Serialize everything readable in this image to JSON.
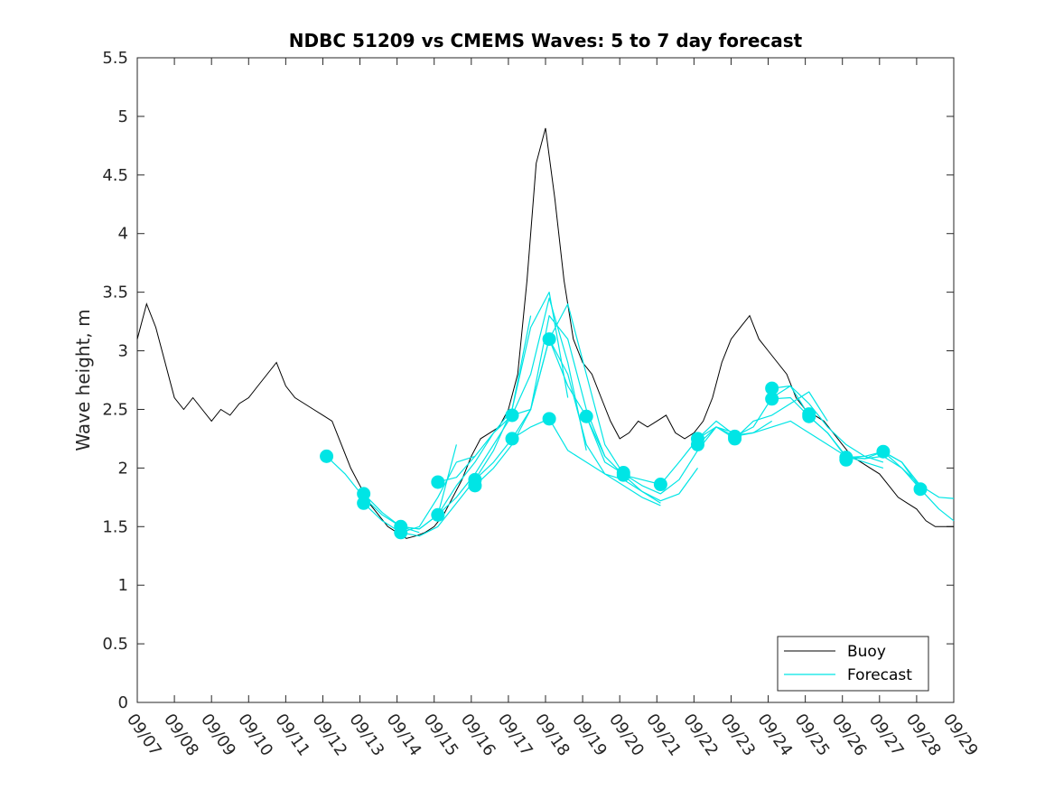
{
  "chart_data": {
    "type": "line",
    "title": "NDBC 51209 vs CMEMS Waves: 5 to 7 day forecast",
    "xlabel": "",
    "ylabel": "Wave height, m",
    "xlim": [
      0,
      22
    ],
    "ylim": [
      0,
      5.5
    ],
    "yticks": [
      0,
      0.5,
      1,
      1.5,
      2,
      2.5,
      3,
      3.5,
      4,
      4.5,
      5,
      5.5
    ],
    "ytick_labels": [
      "0",
      "0.5",
      "1",
      "1.5",
      "2",
      "2.5",
      "3",
      "3.5",
      "4",
      "4.5",
      "5",
      "5.5"
    ],
    "xtick_labels": [
      "09/07",
      "09/08",
      "09/09",
      "09/10",
      "09/11",
      "09/12",
      "09/13",
      "09/14",
      "09/15",
      "09/16",
      "09/17",
      "09/18",
      "09/19",
      "09/20",
      "09/21",
      "09/22",
      "09/23",
      "09/24",
      "09/25",
      "09/26",
      "09/27",
      "09/28",
      "09/29"
    ],
    "legend": {
      "position": "bottom-right",
      "entries": [
        {
          "label": "Buoy",
          "color": "#000000"
        },
        {
          "label": "Forecast",
          "color": "#00e5e5"
        }
      ]
    },
    "series": [
      {
        "name": "Buoy",
        "color": "#000000",
        "x": [
          0,
          0.25,
          0.5,
          0.75,
          1,
          1.25,
          1.5,
          1.75,
          2,
          2.25,
          2.5,
          2.75,
          3,
          3.25,
          3.5,
          3.75,
          4,
          4.25,
          4.5,
          4.75,
          5,
          5.25,
          5.5,
          5.75,
          6,
          6.25,
          6.5,
          6.75,
          7,
          7.25,
          7.5,
          7.75,
          8,
          8.25,
          8.5,
          8.75,
          9,
          9.25,
          9.5,
          9.75,
          10,
          10.25,
          10.5,
          10.75,
          11,
          11.25,
          11.5,
          11.75,
          12,
          12.25,
          12.5,
          12.75,
          13,
          13.25,
          13.5,
          13.75,
          14,
          14.25,
          14.5,
          14.75,
          15,
          15.25,
          15.5,
          15.75,
          16,
          16.25,
          16.5,
          16.75,
          17,
          17.25,
          17.5,
          17.75,
          18,
          18.25,
          18.5,
          18.75,
          19,
          19.25,
          19.5,
          19.75,
          20,
          20.25,
          20.5,
          20.75,
          21,
          21.25,
          21.5,
          21.75,
          22
        ],
        "y": [
          3.1,
          3.4,
          3.2,
          2.9,
          2.6,
          2.5,
          2.6,
          2.5,
          2.4,
          2.5,
          2.45,
          2.55,
          2.6,
          2.7,
          2.8,
          2.9,
          2.7,
          2.6,
          2.55,
          2.5,
          2.45,
          2.4,
          2.2,
          2.0,
          1.85,
          1.7,
          1.6,
          1.5,
          1.45,
          1.4,
          1.42,
          1.45,
          1.5,
          1.6,
          1.75,
          1.9,
          2.1,
          2.25,
          2.3,
          2.35,
          2.5,
          2.8,
          3.6,
          4.6,
          4.9,
          4.3,
          3.6,
          3.1,
          2.9,
          2.8,
          2.6,
          2.4,
          2.25,
          2.3,
          2.4,
          2.35,
          2.4,
          2.45,
          2.3,
          2.25,
          2.3,
          2.4,
          2.6,
          2.9,
          3.1,
          3.2,
          3.3,
          3.1,
          3.0,
          2.9,
          2.8,
          2.6,
          2.5,
          2.45,
          2.4,
          2.3,
          2.2,
          2.1,
          2.05,
          2.0,
          1.95,
          1.85,
          1.75,
          1.7,
          1.65,
          1.55,
          1.5,
          1.5,
          1.5
        ]
      },
      {
        "name": "Forecast",
        "color": "#00e5e5",
        "runs": [
          {
            "x": [
              5.1,
              5.6,
              6.1,
              6.6,
              7.1,
              7.6
            ],
            "y": [
              2.1,
              1.95,
              1.75,
              1.6,
              1.5,
              1.45
            ]
          },
          {
            "x": [
              6.1,
              6.6,
              7.1,
              7.6,
              8.1,
              8.6
            ],
            "y": [
              1.78,
              1.62,
              1.5,
              1.48,
              1.6,
              2.2
            ]
          },
          {
            "x": [
              6.1,
              6.6,
              7.1,
              7.6,
              8.1,
              8.6,
              9.1
            ],
            "y": [
              1.7,
              1.55,
              1.45,
              1.5,
              1.75,
              2.05,
              2.1
            ]
          },
          {
            "x": [
              7.1,
              7.6,
              8.1,
              8.6,
              9.1,
              9.6,
              10.1
            ],
            "y": [
              1.5,
              1.48,
              1.6,
              1.85,
              2.05,
              2.3,
              2.45
            ]
          },
          {
            "x": [
              7.1,
              7.6,
              8.1,
              8.6,
              9.1,
              9.6,
              10.1,
              10.6
            ],
            "y": [
              1.45,
              1.42,
              1.5,
              1.7,
              1.9,
              2.15,
              2.5,
              3.3
            ]
          },
          {
            "x": [
              8.1,
              8.6,
              9.1,
              9.6,
              10.1,
              10.6,
              11.1,
              11.6
            ],
            "y": [
              1.88,
              1.92,
              2.1,
              2.3,
              2.5,
              3.2,
              3.5,
              2.6
            ]
          },
          {
            "x": [
              8.1,
              8.6,
              9.1,
              9.6,
              10.1,
              10.6,
              11.1,
              11.6,
              12.1
            ],
            "y": [
              1.6,
              1.75,
              1.95,
              2.2,
              2.45,
              2.8,
              3.45,
              2.9,
              2.15
            ]
          },
          {
            "x": [
              9.1,
              9.6,
              10.1,
              10.6,
              11.1,
              11.6,
              12.1,
              12.6
            ],
            "y": [
              1.9,
              2.05,
              2.25,
              2.5,
              3.3,
              3.1,
              2.5,
              2.1
            ]
          },
          {
            "x": [
              9.1,
              9.6,
              10.1,
              10.6,
              11.1,
              11.6,
              12.1,
              12.6,
              13.1
            ],
            "y": [
              1.85,
              2.0,
              2.2,
              2.5,
              3.1,
              3.4,
              2.8,
              2.2,
              1.95
            ]
          },
          {
            "x": [
              10.1,
              10.6,
              11.1,
              11.6,
              12.1,
              12.6,
              13.1,
              13.6,
              14.1
            ],
            "y": [
              2.45,
              2.5,
              3.1,
              2.8,
              2.2,
              1.95,
              1.85,
              1.75,
              1.68
            ]
          },
          {
            "x": [
              10.1,
              10.6,
              11.1,
              11.6,
              12.1,
              12.6,
              13.1,
              13.6,
              14.1
            ],
            "y": [
              2.25,
              2.35,
              2.42,
              2.15,
              2.05,
              1.95,
              1.9,
              1.8,
              1.7
            ]
          },
          {
            "x": [
              11.1,
              11.6,
              12.1,
              12.6,
              13.1,
              13.6,
              14.1,
              14.6,
              15.1
            ],
            "y": [
              3.1,
              2.7,
              2.44,
              2.1,
              1.94,
              1.8,
              1.72,
              1.78,
              2.0
            ]
          },
          {
            "x": [
              12.1,
              12.6,
              13.1,
              13.6,
              14.1,
              14.6,
              15.1,
              15.6,
              16.1
            ],
            "y": [
              2.44,
              2.05,
              1.95,
              1.85,
              1.78,
              1.9,
              2.15,
              2.35,
              2.3
            ]
          },
          {
            "x": [
              13.1,
              13.6,
              14.1,
              14.6,
              15.1,
              15.6,
              16.1,
              16.6,
              17.1
            ],
            "y": [
              1.94,
              1.9,
              1.86,
              2.05,
              2.25,
              2.4,
              2.28,
              2.3,
              2.4
            ]
          },
          {
            "x": [
              15.1,
              15.6,
              16.1,
              16.6,
              17.1,
              17.6,
              18.1,
              18.6
            ],
            "y": [
              2.2,
              2.35,
              2.25,
              2.4,
              2.45,
              2.55,
              2.65,
              2.4
            ]
          },
          {
            "x": [
              15.1,
              15.6,
              16.1,
              16.6,
              17.1,
              17.6,
              18.1
            ],
            "y": [
              2.25,
              2.35,
              2.27,
              2.35,
              2.6,
              2.7,
              2.45
            ]
          },
          {
            "x": [
              16.1,
              16.6,
              17.1,
              17.6,
              18.1,
              18.6,
              19.1,
              19.6,
              20.1
            ],
            "y": [
              2.27,
              2.3,
              2.35,
              2.4,
              2.3,
              2.2,
              2.1,
              2.05,
              2.0
            ]
          },
          {
            "x": [
              17.1,
              17.6,
              18.1,
              18.6,
              19.1,
              19.6,
              20.1
            ],
            "y": [
              2.68,
              2.7,
              2.55,
              2.35,
              2.2,
              2.1,
              2.05
            ]
          },
          {
            "x": [
              17.1,
              17.6,
              18.1,
              18.6,
              19.1,
              19.6,
              20.1,
              20.6,
              21.1
            ],
            "y": [
              2.59,
              2.6,
              2.44,
              2.3,
              2.1,
              2.08,
              2.1,
              2.0,
              1.85
            ]
          },
          {
            "x": [
              18.1,
              18.6,
              19.1,
              19.6,
              20.1,
              20.6,
              21.1
            ],
            "y": [
              2.44,
              2.3,
              2.09,
              2.1,
              2.14,
              2.05,
              1.82
            ]
          },
          {
            "x": [
              19.1,
              19.6,
              20.1,
              20.6,
              21.1,
              21.6,
              22
            ],
            "y": [
              2.09,
              2.08,
              2.14,
              2.05,
              1.85,
              1.75,
              1.74
            ]
          },
          {
            "x": [
              20.1,
              20.6,
              21.1,
              21.6,
              22
            ],
            "y": [
              2.14,
              2.0,
              1.82,
              1.65,
              1.55
            ]
          }
        ],
        "markers": [
          {
            "x": 5.1,
            "y": 2.1
          },
          {
            "x": 6.1,
            "y": 1.78
          },
          {
            "x": 6.1,
            "y": 1.7
          },
          {
            "x": 7.1,
            "y": 1.5
          },
          {
            "x": 7.1,
            "y": 1.45
          },
          {
            "x": 8.1,
            "y": 1.88
          },
          {
            "x": 8.1,
            "y": 1.6
          },
          {
            "x": 9.1,
            "y": 1.9
          },
          {
            "x": 9.1,
            "y": 1.85
          },
          {
            "x": 10.1,
            "y": 2.45
          },
          {
            "x": 10.1,
            "y": 2.25
          },
          {
            "x": 11.1,
            "y": 3.1
          },
          {
            "x": 11.1,
            "y": 2.42
          },
          {
            "x": 12.1,
            "y": 2.44
          },
          {
            "x": 13.1,
            "y": 1.94
          },
          {
            "x": 13.1,
            "y": 1.96
          },
          {
            "x": 14.1,
            "y": 1.86
          },
          {
            "x": 15.1,
            "y": 2.2
          },
          {
            "x": 15.1,
            "y": 2.25
          },
          {
            "x": 16.1,
            "y": 2.27
          },
          {
            "x": 16.1,
            "y": 2.25
          },
          {
            "x": 17.1,
            "y": 2.68
          },
          {
            "x": 17.1,
            "y": 2.59
          },
          {
            "x": 18.1,
            "y": 2.44
          },
          {
            "x": 18.1,
            "y": 2.46
          },
          {
            "x": 19.1,
            "y": 2.09
          },
          {
            "x": 19.1,
            "y": 2.07
          },
          {
            "x": 20.1,
            "y": 2.14
          },
          {
            "x": 21.1,
            "y": 1.82
          }
        ]
      }
    ]
  }
}
